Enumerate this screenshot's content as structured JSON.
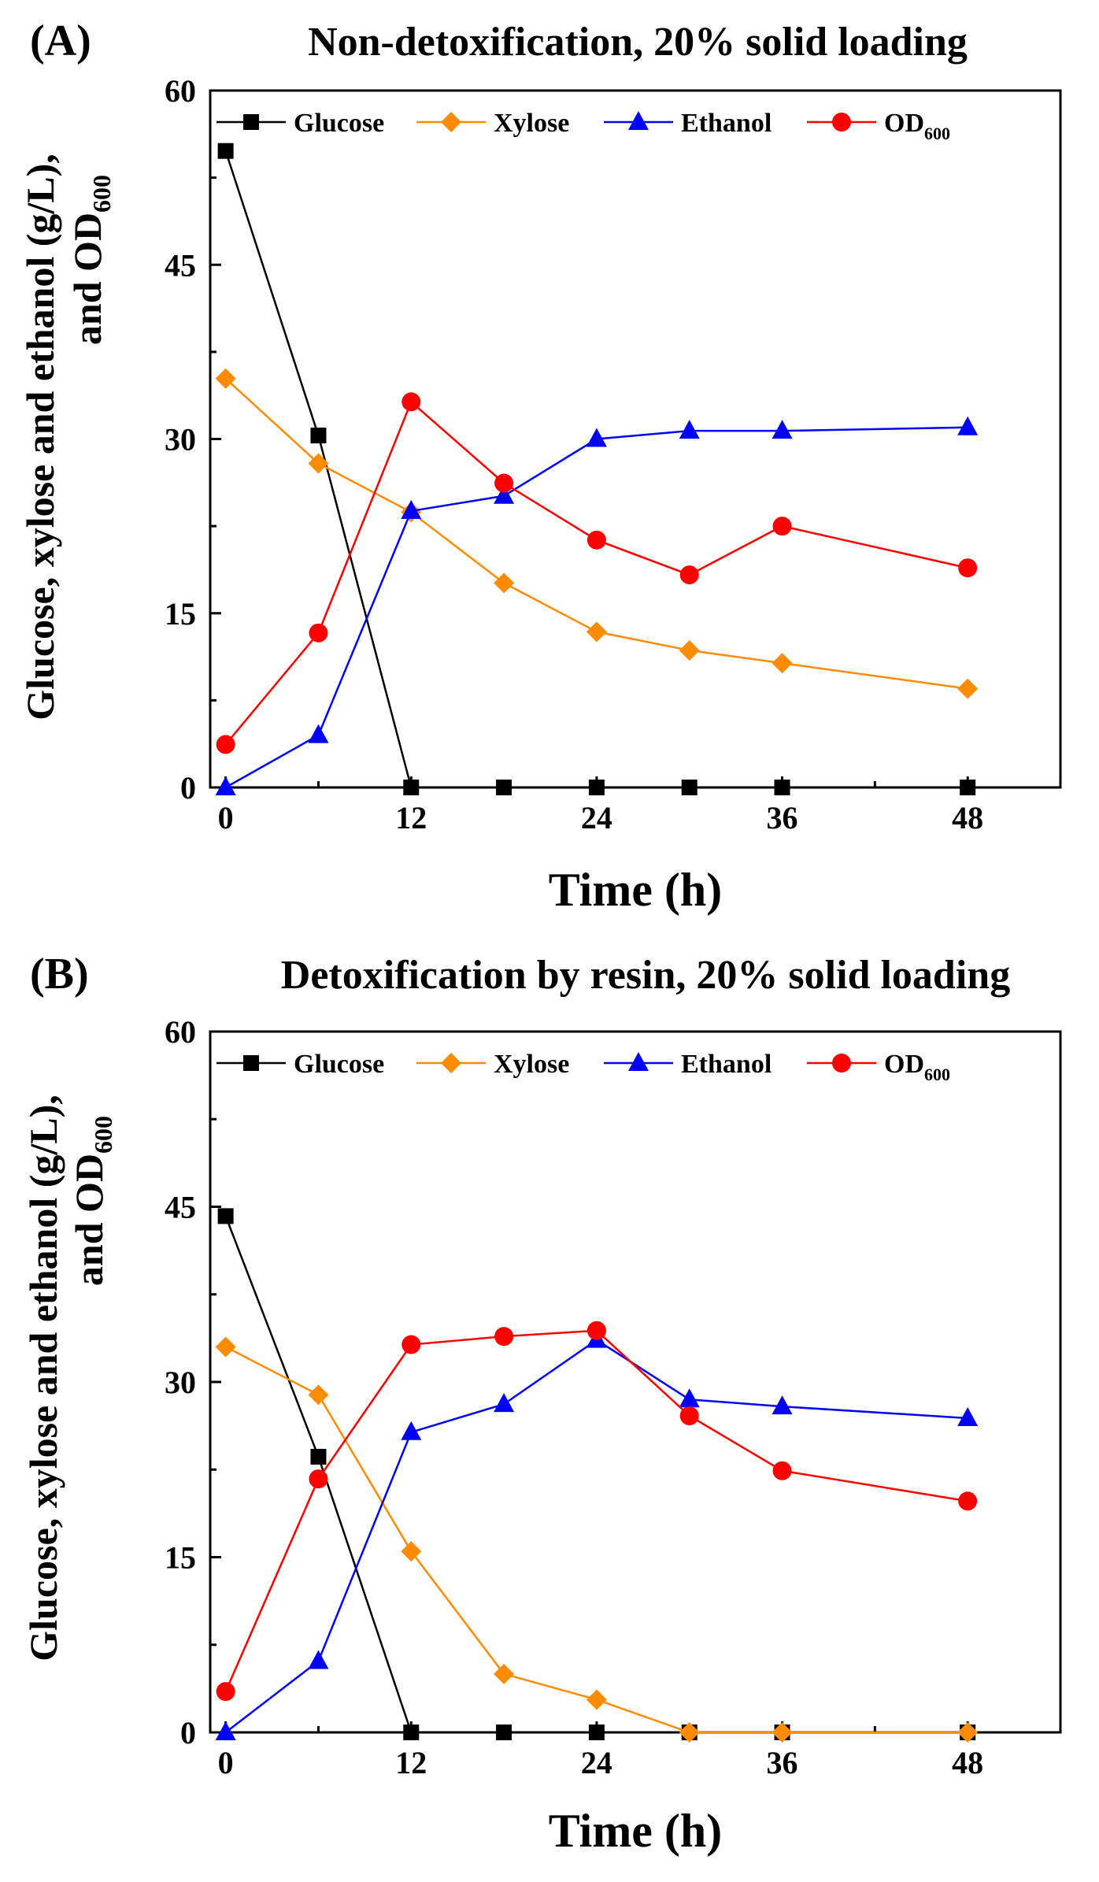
{
  "chart_data": [
    {
      "type": "line",
      "panel_label": "(A)",
      "title": "Non-detoxification, 20% solid loading",
      "xlabel": "Time (h)",
      "ylabel_main": "Glucose, xylose and ethanol (g/L),",
      "ylabel_second_prefix": "and OD",
      "ylabel_second_sub": "600",
      "xlim": [
        -1,
        54
      ],
      "ylim": [
        0,
        60
      ],
      "xticks": [
        "0",
        "12",
        "24",
        "36",
        "48"
      ],
      "yticks": [
        "0",
        "15",
        "30",
        "45",
        "60"
      ],
      "legend_position": "top",
      "x": [
        0,
        6,
        12,
        18,
        24,
        30,
        36,
        48
      ],
      "series": [
        {
          "name": "Glucose",
          "sub": "",
          "color": "#000000",
          "marker": "square",
          "values": [
            54.8,
            30.3,
            0,
            0,
            0,
            0,
            0,
            0
          ]
        },
        {
          "name": "Xylose",
          "sub": "",
          "color": "#ff8c00",
          "marker": "diamond",
          "values": [
            35.2,
            27.9,
            23.7,
            17.6,
            13.4,
            11.8,
            10.7,
            8.5
          ]
        },
        {
          "name": "Ethanol",
          "sub": "",
          "color": "#0000ff",
          "marker": "triangle",
          "values": [
            0,
            4.5,
            23.8,
            25.1,
            30.0,
            30.7,
            30.7,
            31.0
          ]
        },
        {
          "name": "OD",
          "sub": "600",
          "color": "#ff0000",
          "marker": "circle",
          "values": [
            3.7,
            13.3,
            33.2,
            26.2,
            21.3,
            18.3,
            22.5,
            18.9
          ]
        }
      ]
    },
    {
      "type": "line",
      "panel_label": "(B)",
      "title": "Detoxification by resin, 20% solid loading",
      "xlabel": "Time (h)",
      "ylabel_main": "Glucose, xylose and ethanol (g/L),",
      "ylabel_second_prefix": "and OD",
      "ylabel_second_sub": "600",
      "xlim": [
        -1,
        54
      ],
      "ylim": [
        0,
        60
      ],
      "xticks": [
        "0",
        "12",
        "24",
        "36",
        "48"
      ],
      "yticks": [
        "0",
        "15",
        "30",
        "45",
        "60"
      ],
      "legend_position": "top",
      "x": [
        0,
        6,
        12,
        18,
        24,
        30,
        36,
        48
      ],
      "series": [
        {
          "name": "Glucose",
          "sub": "",
          "color": "#000000",
          "marker": "square",
          "values": [
            44.2,
            23.6,
            0,
            0,
            0,
            0,
            0,
            0
          ]
        },
        {
          "name": "Xylose",
          "sub": "",
          "color": "#ff8c00",
          "marker": "diamond",
          "values": [
            33.0,
            28.9,
            15.5,
            5.0,
            2.8,
            0,
            0,
            0
          ]
        },
        {
          "name": "Ethanol",
          "sub": "",
          "color": "#0000ff",
          "marker": "triangle",
          "values": [
            0,
            6.1,
            25.7,
            28.1,
            33.6,
            28.5,
            27.9,
            26.9
          ]
        },
        {
          "name": "OD",
          "sub": "600",
          "color": "#ff0000",
          "marker": "circle",
          "values": [
            3.5,
            21.7,
            33.2,
            33.9,
            34.4,
            27.1,
            22.4,
            19.8
          ]
        }
      ]
    }
  ]
}
